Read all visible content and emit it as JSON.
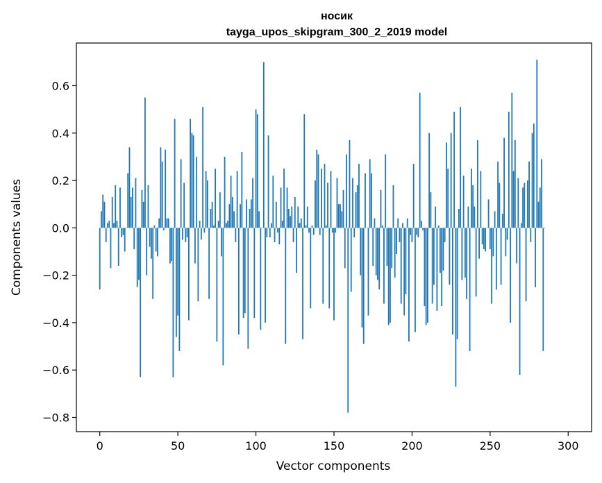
{
  "chart_data": {
    "type": "bar",
    "title": "носик",
    "subtitle": "tayga_upos_skipgram_300_2_2019 model",
    "xlabel": "Vector components",
    "ylabel": "Components values",
    "xlim": [
      -15,
      315
    ],
    "ylim": [
      -0.86,
      0.78
    ],
    "xticks": [
      0,
      50,
      100,
      150,
      200,
      250,
      300
    ],
    "xtick_labels": [
      "0",
      "50",
      "100",
      "150",
      "200",
      "250",
      "300"
    ],
    "yticks": [
      -0.8,
      -0.6,
      -0.4,
      -0.2,
      0.0,
      0.2,
      0.4,
      0.6
    ],
    "ytick_labels": [
      "−0.8",
      "−0.6",
      "−0.4",
      "−0.2",
      "0.0",
      "0.2",
      "0.4",
      "0.6"
    ],
    "bar_color": "#1f77b4",
    "values": [
      -0.26,
      0.07,
      0.14,
      0.11,
      -0.06,
      0.02,
      0.03,
      -0.17,
      0.13,
      0.02,
      0.18,
      0.03,
      -0.16,
      0.17,
      -0.04,
      -0.03,
      -0.1,
      0.0,
      0.23,
      0.34,
      0.13,
      0.17,
      -0.09,
      0.21,
      -0.25,
      -0.22,
      -0.63,
      0.16,
      0.11,
      0.55,
      -0.2,
      0.18,
      -0.08,
      -0.13,
      -0.3,
      0.01,
      -0.1,
      -0.12,
      0.04,
      0.34,
      0.28,
      -0.01,
      0.33,
      0.04,
      0.04,
      -0.15,
      -0.14,
      -0.63,
      0.46,
      -0.46,
      -0.37,
      -0.52,
      0.29,
      -0.05,
      0.19,
      -0.06,
      -0.04,
      -0.39,
      0.46,
      0.4,
      0.39,
      -0.15,
      0.3,
      -0.31,
      0.03,
      -0.05,
      0.51,
      -0.02,
      0.24,
      0.2,
      -0.3,
      0.08,
      0.11,
      0.01,
      0.25,
      -0.48,
      0.03,
      0.15,
      -0.12,
      -0.58,
      0.3,
      0.02,
      0.03,
      0.1,
      0.22,
      0.13,
      0.07,
      -0.06,
      0.24,
      -0.45,
      0.1,
      0.32,
      -0.38,
      -0.36,
      0.12,
      -0.51,
      0.08,
      0.12,
      0.21,
      -0.38,
      0.5,
      0.48,
      0.07,
      -0.43,
      0.0,
      0.7,
      -0.4,
      -0.04,
      0.39,
      -0.04,
      0.02,
      0.22,
      -0.06,
      0.11,
      -0.02,
      -0.07,
      0.17,
      0.03,
      0.25,
      -0.49,
      0.17,
      0.08,
      0.05,
      0.09,
      -0.06,
      0.13,
      -0.19,
      0.09,
      0.02,
      0.04,
      -0.47,
      0.48,
      0.01,
      0.09,
      -0.02,
      -0.34,
      0.01,
      -0.03,
      0.2,
      0.33,
      0.31,
      -0.03,
      0.25,
      -0.32,
      0.27,
      0.01,
      0.19,
      -0.34,
      0.24,
      -0.02,
      -0.39,
      -0.02,
      0.21,
      0.1,
      0.1,
      0.07,
      0.16,
      -0.17,
      0.31,
      -0.78,
      0.37,
      -0.27,
      0.21,
      -0.04,
      0.15,
      0.18,
      0.27,
      -0.2,
      -0.42,
      -0.49,
      0.23,
      0.0,
      -0.37,
      0.29,
      0.23,
      -0.16,
      0.04,
      -0.2,
      -0.22,
      -0.26,
      0.16,
      0.01,
      -0.32,
      0.31,
      -0.16,
      -0.41,
      -0.4,
      -0.17,
      0.18,
      -0.21,
      -0.11,
      0.04,
      -0.06,
      -0.32,
      0.02,
      -0.37,
      -0.28,
      0.04,
      -0.48,
      -0.03,
      -0.06,
      0.27,
      -0.44,
      -0.03,
      -0.04,
      0.57,
      0.03,
      -0.01,
      -0.33,
      -0.41,
      -0.4,
      0.4,
      0.15,
      -0.32,
      -0.24,
      0.09,
      -0.35,
      0.01,
      -0.19,
      -0.33,
      -0.18,
      -0.06,
      0.36,
      0.25,
      -0.24,
      0.4,
      -0.45,
      0.49,
      -0.67,
      -0.47,
      0.08,
      0.51,
      -0.22,
      0.22,
      -0.21,
      -0.3,
      0.09,
      -0.52,
      0.25,
      0.18,
      0.09,
      -0.29,
      0.37,
      -0.13,
      0.24,
      -0.07,
      -0.09,
      -0.1,
      0.0,
      0.12,
      -0.09,
      -0.32,
      -0.12,
      0.07,
      -0.26,
      0.28,
      0.19,
      -0.24,
      0.06,
      0.38,
      -0.12,
      -0.05,
      0.49,
      -0.4,
      0.57,
      0.24,
      0.37,
      -0.15,
      0.21,
      -0.62,
      0.02,
      0.17,
      0.19,
      -0.31,
      0.2,
      0.28,
      -0.06,
      0.4,
      0.44,
      -0.25,
      0.71,
      0.11,
      0.17,
      0.29,
      -0.52,
      0.0
    ]
  }
}
